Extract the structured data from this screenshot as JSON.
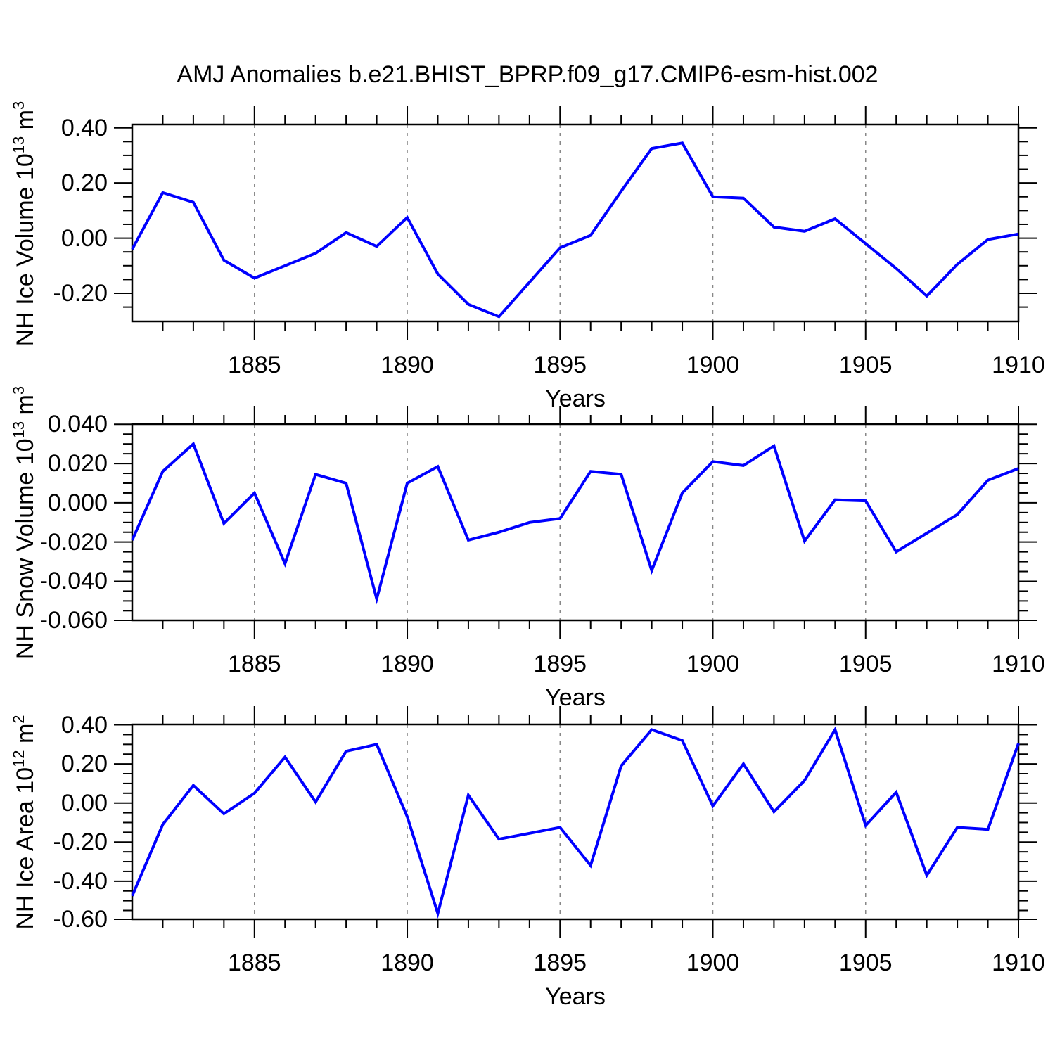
{
  "title": "AMJ Anomalies b.e21.BHIST_BPRP.f09_g17.CMIP6-esm-hist.002",
  "line_color": "#0000ff",
  "grid_color": "#888888",
  "axis_color": "#000000",
  "chart_data": [
    {
      "type": "line",
      "series_name": "NH Ice Volume anomaly",
      "ylabel": {
        "pre": "NH Ice Volume 10",
        "sup1": "13",
        "mid": " m",
        "sup2": "3"
      },
      "xlabel": "Years",
      "x": [
        1881,
        1882,
        1883,
        1884,
        1885,
        1886,
        1887,
        1888,
        1889,
        1890,
        1891,
        1892,
        1893,
        1894,
        1895,
        1896,
        1897,
        1898,
        1899,
        1900,
        1901,
        1902,
        1903,
        1904,
        1905,
        1906,
        1907,
        1908,
        1909,
        1910
      ],
      "values": [
        -0.04,
        0.165,
        0.13,
        -0.08,
        -0.145,
        -0.1,
        -0.055,
        0.02,
        -0.03,
        0.075,
        -0.13,
        -0.24,
        -0.285,
        -0.16,
        -0.035,
        0.01,
        0.17,
        0.325,
        0.345,
        0.15,
        0.145,
        0.04,
        0.025,
        0.07,
        -0.02,
        -0.11,
        -0.21,
        -0.095,
        -0.005,
        0.015
      ],
      "xlim": [
        1881,
        1910
      ],
      "ylim": [
        -0.302,
        0.412
      ],
      "yticks": [
        {
          "v": 0.4,
          "label": "0.40"
        },
        {
          "v": 0.2,
          "label": "0.20"
        },
        {
          "v": 0.0,
          "label": "0.00"
        },
        {
          "v": -0.2,
          "label": "-0.20"
        }
      ],
      "y_minor_step": 0.05,
      "xticks": [
        {
          "v": 1885,
          "label": "1885"
        },
        {
          "v": 1890,
          "label": "1890"
        },
        {
          "v": 1895,
          "label": "1895"
        },
        {
          "v": 1900,
          "label": "1900"
        },
        {
          "v": 1905,
          "label": "1905"
        },
        {
          "v": 1910,
          "label": "1910"
        }
      ],
      "x_minor_step": 1,
      "grid_x": [
        1885,
        1890,
        1895,
        1900,
        1905
      ],
      "grid_on": true,
      "legend": null
    },
    {
      "type": "line",
      "series_name": "NH Snow Volume anomaly",
      "ylabel": {
        "pre": "NH Snow Volume 10",
        "sup1": "13",
        "mid": " m",
        "sup2": "3"
      },
      "xlabel": "Years",
      "x": [
        1881,
        1882,
        1883,
        1884,
        1885,
        1886,
        1887,
        1888,
        1889,
        1890,
        1891,
        1892,
        1893,
        1894,
        1895,
        1896,
        1897,
        1898,
        1899,
        1900,
        1901,
        1902,
        1903,
        1904,
        1905,
        1906,
        1907,
        1908,
        1909,
        1910
      ],
      "values": [
        -0.019,
        0.016,
        0.03,
        -0.0105,
        0.005,
        -0.031,
        0.0145,
        0.01,
        -0.049,
        0.01,
        0.0185,
        -0.019,
        -0.015,
        -0.01,
        -0.008,
        0.016,
        0.0145,
        -0.0345,
        0.005,
        0.021,
        0.019,
        0.029,
        -0.0195,
        0.0015,
        0.001,
        -0.025,
        -0.0155,
        -0.006,
        0.0115,
        0.0175
      ],
      "xlim": [
        1881,
        1910
      ],
      "ylim": [
        -0.0599,
        0.0401
      ],
      "yticks": [
        {
          "v": 0.04,
          "label": "0.040"
        },
        {
          "v": 0.02,
          "label": "0.020"
        },
        {
          "v": 0.0,
          "label": "0.000"
        },
        {
          "v": -0.02,
          "label": "-0.020"
        },
        {
          "v": -0.04,
          "label": "-0.040"
        },
        {
          "v": -0.06,
          "label": "-0.060"
        }
      ],
      "y_minor_step": 0.005,
      "xticks": [
        {
          "v": 1885,
          "label": "1885"
        },
        {
          "v": 1890,
          "label": "1890"
        },
        {
          "v": 1895,
          "label": "1895"
        },
        {
          "v": 1900,
          "label": "1900"
        },
        {
          "v": 1905,
          "label": "1905"
        },
        {
          "v": 1910,
          "label": "1910"
        }
      ],
      "x_minor_step": 1,
      "grid_x": [
        1885,
        1890,
        1895,
        1900,
        1905
      ],
      "grid_on": true,
      "legend": null
    },
    {
      "type": "line",
      "series_name": "NH Ice Area anomaly",
      "ylabel": {
        "pre": "NH Ice Area 10",
        "sup1": "12",
        "mid": " m",
        "sup2": "2"
      },
      "xlabel": "Years",
      "x": [
        1881,
        1882,
        1883,
        1884,
        1885,
        1886,
        1887,
        1888,
        1889,
        1890,
        1891,
        1892,
        1893,
        1894,
        1895,
        1896,
        1897,
        1898,
        1899,
        1900,
        1901,
        1902,
        1903,
        1904,
        1905,
        1906,
        1907,
        1908,
        1909,
        1910
      ],
      "values": [
        -0.475,
        -0.11,
        0.09,
        -0.055,
        0.05,
        0.235,
        0.005,
        0.265,
        0.3,
        -0.07,
        -0.565,
        0.04,
        -0.185,
        -0.155,
        -0.125,
        -0.32,
        0.19,
        0.375,
        0.32,
        -0.015,
        0.2,
        -0.045,
        0.115,
        0.375,
        -0.115,
        0.055,
        -0.37,
        -0.125,
        -0.135,
        0.305
      ],
      "xlim": [
        1881,
        1910
      ],
      "ylim": [
        -0.595,
        0.402
      ],
      "yticks": [
        {
          "v": 0.4,
          "label": "0.40"
        },
        {
          "v": 0.2,
          "label": "0.20"
        },
        {
          "v": 0.0,
          "label": "0.00"
        },
        {
          "v": -0.2,
          "label": "-0.20"
        },
        {
          "v": -0.4,
          "label": "-0.40"
        },
        {
          "v": -0.6,
          "label": "-0.60"
        }
      ],
      "y_minor_step": 0.05,
      "xticks": [
        {
          "v": 1885,
          "label": "1885"
        },
        {
          "v": 1890,
          "label": "1890"
        },
        {
          "v": 1895,
          "label": "1895"
        },
        {
          "v": 1900,
          "label": "1900"
        },
        {
          "v": 1905,
          "label": "1905"
        },
        {
          "v": 1910,
          "label": "1910"
        }
      ],
      "x_minor_step": 1,
      "grid_x": [
        1885,
        1890,
        1895,
        1900,
        1905
      ],
      "grid_on": true,
      "legend": null
    }
  ]
}
